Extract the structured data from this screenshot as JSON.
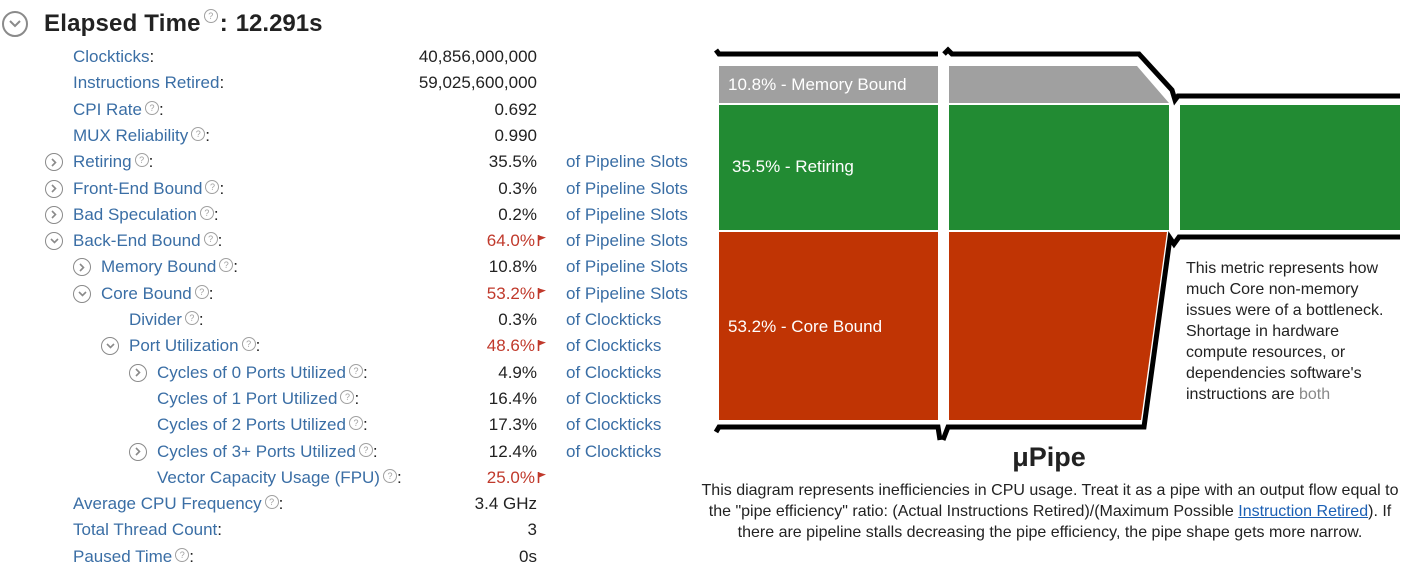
{
  "header": {
    "title": "Elapsed Time",
    "colon": ":",
    "value": "12.291s"
  },
  "metrics": [
    {
      "id": "clockticks",
      "label": "Clockticks",
      "value": "40,856,000,000",
      "unit": "",
      "level": 0,
      "toggle": false,
      "help": false,
      "flag": false
    },
    {
      "id": "instructions-retired",
      "label": "Instructions Retired",
      "value": "59,025,600,000",
      "unit": "",
      "level": 0,
      "toggle": false,
      "help": false,
      "flag": false
    },
    {
      "id": "cpi-rate",
      "label": "CPI Rate",
      "value": "0.692",
      "unit": "",
      "level": 0,
      "toggle": false,
      "help": true,
      "flag": false
    },
    {
      "id": "mux-reliability",
      "label": "MUX Reliability",
      "value": "0.990",
      "unit": "",
      "level": 0,
      "toggle": false,
      "help": true,
      "flag": false
    },
    {
      "id": "retiring",
      "label": "Retiring",
      "value": "35.5%",
      "unit": "of Pipeline Slots",
      "level": 0,
      "toggle": "collapsed",
      "help": true,
      "flag": false
    },
    {
      "id": "front-end-bound",
      "label": "Front-End Bound",
      "value": "0.3%",
      "unit": "of Pipeline Slots",
      "level": 0,
      "toggle": "collapsed",
      "help": true,
      "flag": false
    },
    {
      "id": "bad-speculation",
      "label": "Bad Speculation",
      "value": "0.2%",
      "unit": "of Pipeline Slots",
      "level": 0,
      "toggle": "collapsed",
      "help": true,
      "flag": false
    },
    {
      "id": "back-end-bound",
      "label": "Back-End Bound",
      "value": "64.0%",
      "unit": "of Pipeline Slots",
      "level": 0,
      "toggle": "expanded",
      "help": true,
      "flag": true
    },
    {
      "id": "memory-bound",
      "label": "Memory Bound",
      "value": "10.8%",
      "unit": "of Pipeline Slots",
      "level": 1,
      "toggle": "collapsed",
      "help": true,
      "flag": false
    },
    {
      "id": "core-bound",
      "label": "Core Bound",
      "value": "53.2%",
      "unit": "of Pipeline Slots",
      "level": 1,
      "toggle": "expanded",
      "help": true,
      "flag": true
    },
    {
      "id": "divider",
      "label": "Divider",
      "value": "0.3%",
      "unit": "of Clockticks",
      "level": 2,
      "toggle": false,
      "help": true,
      "flag": false
    },
    {
      "id": "port-utilization",
      "label": "Port Utilization",
      "value": "48.6%",
      "unit": "of Clockticks",
      "level": 2,
      "toggle": "expanded",
      "help": true,
      "flag": true
    },
    {
      "id": "cycles-0-ports",
      "label": "Cycles of 0 Ports Utilized",
      "value": "4.9%",
      "unit": "of Clockticks",
      "level": 3,
      "toggle": "collapsed",
      "help": true,
      "flag": false
    },
    {
      "id": "cycles-1-port",
      "label": "Cycles of 1 Port Utilized",
      "value": "16.4%",
      "unit": "of Clockticks",
      "level": 3,
      "toggle": false,
      "help": true,
      "flag": false
    },
    {
      "id": "cycles-2-ports",
      "label": "Cycles of 2 Ports Utilized",
      "value": "17.3%",
      "unit": "of Clockticks",
      "level": 3,
      "toggle": false,
      "help": true,
      "flag": false
    },
    {
      "id": "cycles-3-ports",
      "label": "Cycles of 3+ Ports Utilized",
      "value": "12.4%",
      "unit": "of Clockticks",
      "level": 3,
      "toggle": "collapsed",
      "help": true,
      "flag": false
    },
    {
      "id": "vector-capacity",
      "label": "Vector Capacity Usage (FPU)",
      "value": "25.0%",
      "unit": "",
      "level": 3,
      "toggle": false,
      "help": true,
      "flag": true
    },
    {
      "id": "avg-cpu-frequency",
      "label": "Average CPU Frequency",
      "value": "3.4 GHz",
      "unit": "",
      "level": 0,
      "toggle": false,
      "help": true,
      "flag": false
    },
    {
      "id": "total-thread-count",
      "label": "Total Thread Count",
      "value": "3",
      "unit": "",
      "level": 0,
      "toggle": false,
      "help": false,
      "flag": false
    },
    {
      "id": "paused-time",
      "label": "Paused Time",
      "value": "0s",
      "unit": "",
      "level": 0,
      "toggle": false,
      "help": true,
      "flag": false
    }
  ],
  "pipe": {
    "memory_label": "10.8% - Memory Bound",
    "retiring_label": "35.5% - Retiring",
    "core_label": "53.2% - Core Bound",
    "tooltip_text": "This metric represents how much Core non-memory issues were of a bottleneck. Shortage in hardware compute resources, or dependencies software's instructions are",
    "tooltip_fade": "both",
    "colors": {
      "memory": "#a0a0a0",
      "retiring": "#228b33",
      "core": "#c03404",
      "outline": "#000000"
    }
  },
  "upipe": {
    "title": "μPipe",
    "desc_1": "This diagram represents inefficiencies in CPU usage. Treat it as a pipe with an output flow equal to the \"pipe efficiency\" ratio: (Actual Instructions Retired)/(Maximum Possible",
    "desc_link": "Instruction Retired",
    "desc_2": "). If there are pipeline stalls decreasing the pipe efficiency, the pipe shape gets more narrow."
  },
  "accent_colors": {
    "link": "#3a6ea5",
    "flag": "#c0392b"
  }
}
